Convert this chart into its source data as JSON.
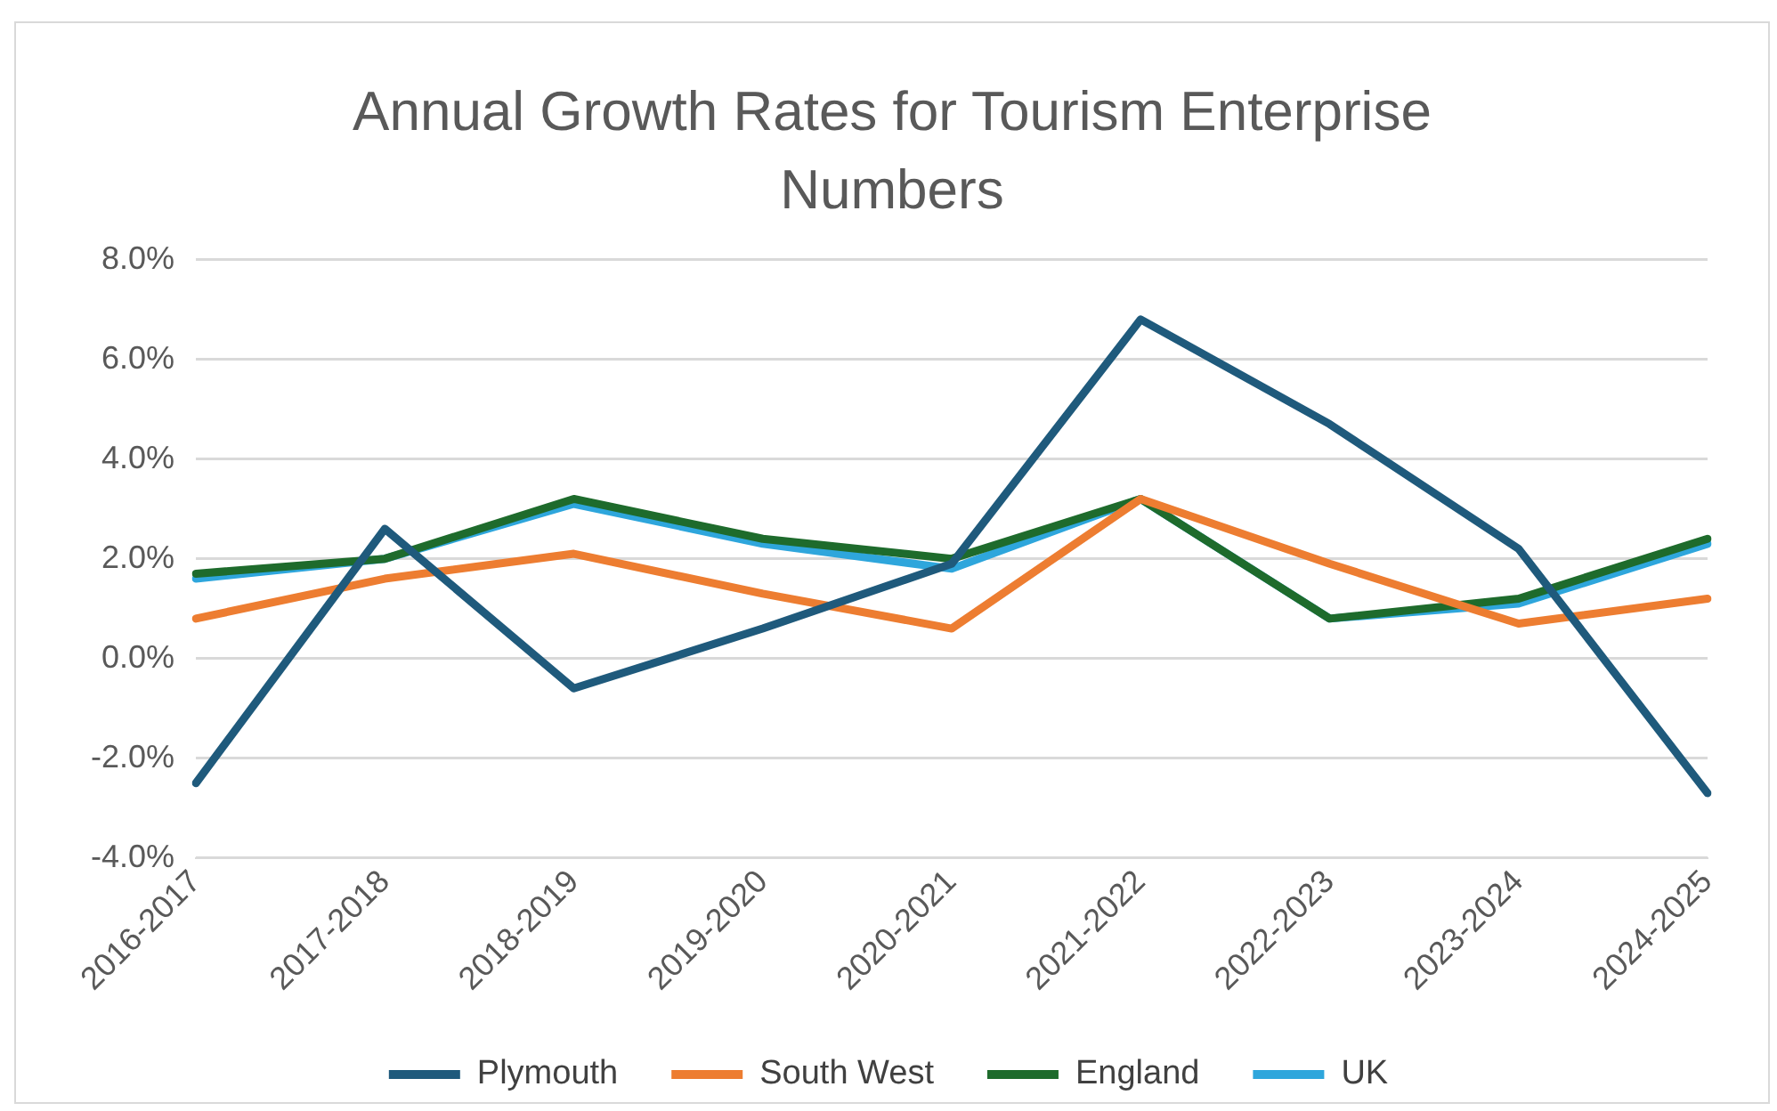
{
  "chart_data": {
    "type": "line",
    "title": "Annual Growth Rates for Tourism Enterprise Numbers",
    "categories": [
      "2016-2017",
      "2017-2018",
      "2018-2019",
      "2019-2020",
      "2020-2021",
      "2021-2022",
      "2022-2023",
      "2023-2024",
      "2024-2025"
    ],
    "series": [
      {
        "name": "Plymouth",
        "color": "#1f5a7c",
        "values": [
          -2.5,
          2.6,
          -0.6,
          0.6,
          1.9,
          6.8,
          4.7,
          2.2,
          -2.7
        ]
      },
      {
        "name": "South West",
        "color": "#ed7d31",
        "values": [
          0.8,
          1.6,
          2.1,
          1.3,
          0.6,
          3.2,
          1.9,
          0.7,
          1.2
        ]
      },
      {
        "name": "England",
        "color": "#1e6b2c",
        "values": [
          1.7,
          2.0,
          3.2,
          2.4,
          2.0,
          3.2,
          0.8,
          1.2,
          2.4
        ]
      },
      {
        "name": "UK",
        "color": "#2ea6dc",
        "values": [
          1.6,
          2.0,
          3.1,
          2.3,
          1.8,
          3.2,
          0.8,
          1.1,
          2.3
        ]
      }
    ],
    "ylim": [
      -4,
      8
    ],
    "yticks": [
      {
        "value": -4,
        "label": "-4.0%"
      },
      {
        "value": -2,
        "label": "-2.0%"
      },
      {
        "value": 0,
        "label": "0.0%"
      },
      {
        "value": 2,
        "label": "2.0%"
      },
      {
        "value": 4,
        "label": "4.0%"
      },
      {
        "value": 6,
        "label": "6.0%"
      },
      {
        "value": 8,
        "label": "8.0%"
      }
    ],
    "grid": "y",
    "legend": "bottom",
    "marker": "none",
    "line_style": "solid"
  }
}
